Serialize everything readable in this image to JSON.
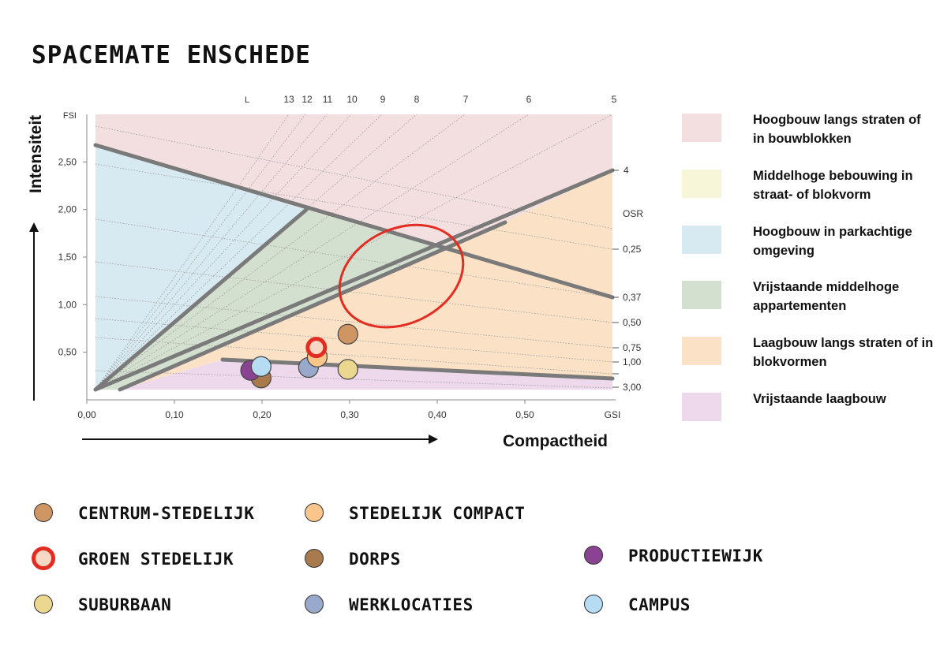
{
  "page": {
    "title": "SPACEMATE ENSCHEDE"
  },
  "chart_data": {
    "type": "scatter",
    "x_axis": {
      "label": "Compactheid",
      "unit_label": "GSI",
      "ticks": [
        "0,00",
        "0,10",
        "0,20",
        "0,30",
        "0,40",
        "0,50"
      ],
      "tick_values": [
        0.0,
        0.1,
        0.2,
        0.3,
        0.4,
        0.5
      ],
      "range": [
        0.0,
        0.6
      ]
    },
    "y_axis": {
      "label": "Intensiteit",
      "unit_label": "FSI",
      "ticks": [
        "0,50",
        "1,00",
        "1,50",
        "2,00",
        "2,50"
      ],
      "tick_values": [
        0.5,
        1.0,
        1.5,
        2.0,
        2.5
      ],
      "range": [
        0.0,
        3.0
      ]
    },
    "layer_lines": {
      "label": "L",
      "values": [
        13,
        12,
        11,
        10,
        9,
        8,
        7,
        6,
        5,
        4
      ]
    },
    "osr_lines": {
      "label": "OSR",
      "labels": [
        "0,25",
        "0,37",
        "0,50",
        "0,75",
        "1,00",
        "3,00"
      ],
      "values": [
        0.25,
        0.37,
        0.5,
        0.75,
        1.0,
        3.0
      ]
    },
    "regions": [
      {
        "name": "Hoogbouw langs straten of in bouwblokken",
        "color": "#f4dfe0"
      },
      {
        "name": "Middelhoge bebouwing in straat- of blokvorm",
        "color": "#f7f6d8"
      },
      {
        "name": "Hoogbouw in parkachtige omgeving",
        "color": "#d8eaf1"
      },
      {
        "name": "Vrijstaande middelhoge appartementen",
        "color": "#d4e0cf"
      },
      {
        "name": "Laagbouw langs straten of in blokvormen",
        "color": "#fbe1c5"
      },
      {
        "name": "Vrijstaande laagbouw",
        "color": "#eed9ec"
      }
    ],
    "series": [
      {
        "name": "CENTRUM-STEDELIJK",
        "color": "#cf9664",
        "points": [
          {
            "x": 0.298,
            "y": 0.69
          }
        ]
      },
      {
        "name": "STEDELIJK COMPACT",
        "color": "#fbc68b",
        "points": [
          {
            "x": 0.263,
            "y": 0.45
          }
        ]
      },
      {
        "name": "GROEN STEDELIJK",
        "color": "#f8d7c4",
        "ring_color": "#e32c22",
        "points": [
          {
            "x": 0.262,
            "y": 0.55
          }
        ]
      },
      {
        "name": "DORPS",
        "color": "#a87a4e",
        "points": [
          {
            "x": 0.199,
            "y": 0.23
          }
        ]
      },
      {
        "name": "PRODUCTIEWIJK",
        "color": "#8a4393",
        "points": [
          {
            "x": 0.187,
            "y": 0.31
          }
        ]
      },
      {
        "name": "SUBURBAAN",
        "color": "#ecd791",
        "points": [
          {
            "x": 0.298,
            "y": 0.32
          }
        ]
      },
      {
        "name": "WERKLOCATIES",
        "color": "#99a9cb",
        "points": [
          {
            "x": 0.253,
            "y": 0.34
          }
        ]
      },
      {
        "name": "CAMPUS",
        "color": "#b5dcf2",
        "points": [
          {
            "x": 0.199,
            "y": 0.35
          }
        ]
      }
    ],
    "highlight_ellipse": {
      "center": {
        "x": 0.359,
        "y": 1.3
      },
      "color": "#e32c22"
    }
  },
  "legend": [
    {
      "label": "Hoogbouw langs straten of in bouwblokken",
      "color": "#f4dfe0"
    },
    {
      "label": "Middelhoge bebouwing in straat- of blokvorm",
      "color": "#f7f6d8"
    },
    {
      "label": "Hoogbouw in parkachtige omgeving",
      "color": "#d8eaf1"
    },
    {
      "label": "Vrijstaande middelhoge appartementen",
      "color": "#d4e0cf"
    },
    {
      "label": "Laagbouw langs straten of in blokvormen",
      "color": "#fbe1c5"
    },
    {
      "label": "Vrijstaande laagbouw",
      "color": "#eed9ec"
    }
  ],
  "typology_legend": [
    {
      "label": "CENTRUM-STEDELIJK",
      "color": "#cf9664",
      "ring": false
    },
    {
      "label": "STEDELIJK COMPACT",
      "color": "#fbc68b",
      "ring": false
    },
    {
      "label": "GROEN STEDELIJK",
      "color": "#f8d7c4",
      "ring": true
    },
    {
      "label": "DORPS",
      "color": "#a87a4e",
      "ring": false
    },
    {
      "label": "PRODUCTIEWIJK",
      "color": "#8a4393",
      "ring": false
    },
    {
      "label": "SUBURBAAN",
      "color": "#ecd791",
      "ring": false
    },
    {
      "label": "WERKLOCATIES",
      "color": "#99a9cb",
      "ring": false
    },
    {
      "label": "CAMPUS",
      "color": "#b5dcf2",
      "ring": false
    }
  ]
}
